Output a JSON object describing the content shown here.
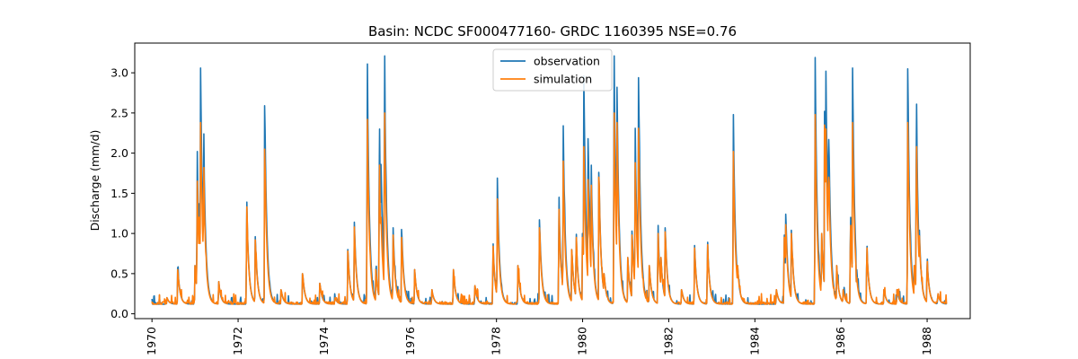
{
  "chart_data": {
    "type": "line",
    "title": "Basin: NCDC SF000477160- GRDC 1160395 NSE=0.76",
    "xlabel": "",
    "ylabel": "Discharge (mm/d)",
    "xlim": [
      1969.6,
      1989.0
    ],
    "ylim": [
      -0.06,
      3.37
    ],
    "x_ticks": [
      1970,
      1972,
      1974,
      1976,
      1978,
      1980,
      1982,
      1984,
      1986,
      1988
    ],
    "x_tick_labels": [
      "1970",
      "1972",
      "1974",
      "1976",
      "1978",
      "1980",
      "1982",
      "1984",
      "1986",
      "1988"
    ],
    "y_ticks": [
      0.0,
      0.5,
      1.0,
      1.5,
      2.0,
      2.5,
      3.0
    ],
    "y_tick_labels": [
      "0.0",
      "0.5",
      "1.0",
      "1.5",
      "2.0",
      "2.5",
      "3.0"
    ],
    "grid": false,
    "legend": "top-center",
    "x_range": [
      1970.0,
      1988.45
    ],
    "baseline": 0.12,
    "series": [
      {
        "name": "observation",
        "color": "#1f77b4",
        "peaks": [
          [
            1970.35,
            0.2
          ],
          [
            1970.6,
            0.57
          ],
          [
            1971.0,
            0.6
          ],
          [
            1971.05,
            2.02
          ],
          [
            1971.1,
            1.37
          ],
          [
            1971.13,
            3.06
          ],
          [
            1971.2,
            2.24
          ],
          [
            1971.55,
            0.4
          ],
          [
            1972.2,
            1.39
          ],
          [
            1972.4,
            0.96
          ],
          [
            1972.62,
            2.59
          ],
          [
            1973.0,
            0.3
          ],
          [
            1973.5,
            0.5
          ],
          [
            1973.9,
            0.38
          ],
          [
            1974.25,
            0.2
          ],
          [
            1974.55,
            0.8
          ],
          [
            1974.7,
            1.14
          ],
          [
            1975.0,
            3.11
          ],
          [
            1975.2,
            0.55
          ],
          [
            1975.28,
            2.3
          ],
          [
            1975.32,
            1.86
          ],
          [
            1975.4,
            3.21
          ],
          [
            1975.6,
            1.07
          ],
          [
            1975.8,
            1.05
          ],
          [
            1976.1,
            0.55
          ],
          [
            1976.5,
            0.3
          ],
          [
            1977.0,
            0.55
          ],
          [
            1977.5,
            0.35
          ],
          [
            1977.92,
            0.87
          ],
          [
            1978.02,
            1.69
          ],
          [
            1978.5,
            0.6
          ],
          [
            1979.0,
            1.17
          ],
          [
            1979.45,
            1.45
          ],
          [
            1979.55,
            2.34
          ],
          [
            1979.75,
            0.8
          ],
          [
            1979.85,
            0.99
          ],
          [
            1980.0,
            1.0
          ],
          [
            1980.03,
            2.96
          ],
          [
            1980.13,
            2.18
          ],
          [
            1980.2,
            1.85
          ],
          [
            1980.38,
            1.76
          ],
          [
            1980.5,
            0.5
          ],
          [
            1980.73,
            3.21
          ],
          [
            1980.8,
            2.82
          ],
          [
            1981.05,
            0.7
          ],
          [
            1981.15,
            1.03
          ],
          [
            1981.22,
            2.31
          ],
          [
            1981.3,
            2.94
          ],
          [
            1981.55,
            0.6
          ],
          [
            1981.75,
            1.1
          ],
          [
            1981.82,
            0.7
          ],
          [
            1981.92,
            1.07
          ],
          [
            1982.3,
            0.3
          ],
          [
            1982.6,
            0.85
          ],
          [
            1982.9,
            0.89
          ],
          [
            1983.5,
            2.48
          ],
          [
            1983.6,
            0.6
          ],
          [
            1984.5,
            0.3
          ],
          [
            1984.68,
            0.98
          ],
          [
            1984.72,
            1.24
          ],
          [
            1984.85,
            1.04
          ],
          [
            1985.4,
            3.19
          ],
          [
            1985.55,
            1.0
          ],
          [
            1985.62,
            2.52
          ],
          [
            1985.65,
            3.02
          ],
          [
            1985.7,
            1.93
          ],
          [
            1985.72,
            2.17
          ],
          [
            1985.9,
            0.6
          ],
          [
            1986.05,
            0.3
          ],
          [
            1986.22,
            1.2
          ],
          [
            1986.27,
            3.06
          ],
          [
            1986.35,
            0.4
          ],
          [
            1986.6,
            0.84
          ],
          [
            1987.0,
            0.3
          ],
          [
            1987.3,
            0.3
          ],
          [
            1987.55,
            3.05
          ],
          [
            1987.7,
            0.6
          ],
          [
            1987.75,
            2.61
          ],
          [
            1987.82,
            1.04
          ],
          [
            1988.0,
            0.68
          ],
          [
            1988.25,
            0.25
          ]
        ]
      },
      {
        "name": "simulation",
        "color": "#ff7f0e",
        "peaks": [
          [
            1970.35,
            0.2
          ],
          [
            1970.6,
            0.55
          ],
          [
            1971.0,
            0.6
          ],
          [
            1971.05,
            1.65
          ],
          [
            1971.1,
            1.2
          ],
          [
            1971.13,
            2.38
          ],
          [
            1971.2,
            1.82
          ],
          [
            1971.55,
            0.4
          ],
          [
            1972.2,
            1.33
          ],
          [
            1972.4,
            0.92
          ],
          [
            1972.62,
            2.05
          ],
          [
            1973.0,
            0.3
          ],
          [
            1973.5,
            0.5
          ],
          [
            1973.9,
            0.38
          ],
          [
            1974.25,
            0.2
          ],
          [
            1974.55,
            0.78
          ],
          [
            1974.7,
            1.08
          ],
          [
            1975.0,
            2.42
          ],
          [
            1975.2,
            0.55
          ],
          [
            1975.28,
            1.85
          ],
          [
            1975.32,
            1.2
          ],
          [
            1975.4,
            2.5
          ],
          [
            1975.6,
            0.98
          ],
          [
            1975.8,
            0.95
          ],
          [
            1976.1,
            0.55
          ],
          [
            1976.5,
            0.3
          ],
          [
            1977.0,
            0.55
          ],
          [
            1977.5,
            0.35
          ],
          [
            1977.92,
            0.84
          ],
          [
            1978.02,
            1.43
          ],
          [
            1978.5,
            0.6
          ],
          [
            1979.0,
            1.07
          ],
          [
            1979.45,
            1.3
          ],
          [
            1979.55,
            1.9
          ],
          [
            1979.75,
            0.8
          ],
          [
            1979.85,
            0.95
          ],
          [
            1980.0,
            0.95
          ],
          [
            1980.03,
            2.08
          ],
          [
            1980.13,
            1.67
          ],
          [
            1980.2,
            1.6
          ],
          [
            1980.38,
            1.7
          ],
          [
            1980.5,
            0.5
          ],
          [
            1980.73,
            2.5
          ],
          [
            1980.8,
            2.38
          ],
          [
            1981.05,
            0.7
          ],
          [
            1981.15,
            0.98
          ],
          [
            1981.22,
            1.88
          ],
          [
            1981.3,
            2.31
          ],
          [
            1981.55,
            0.6
          ],
          [
            1981.75,
            1.0
          ],
          [
            1981.82,
            0.7
          ],
          [
            1981.92,
            1.02
          ],
          [
            1982.3,
            0.3
          ],
          [
            1982.6,
            0.82
          ],
          [
            1982.9,
            0.86
          ],
          [
            1983.5,
            2.02
          ],
          [
            1983.6,
            0.6
          ],
          [
            1984.5,
            0.3
          ],
          [
            1984.68,
            0.95
          ],
          [
            1984.72,
            1.11
          ],
          [
            1984.85,
            1.0
          ],
          [
            1985.4,
            2.48
          ],
          [
            1985.55,
            1.0
          ],
          [
            1985.62,
            2.35
          ],
          [
            1985.65,
            2.3
          ],
          [
            1985.7,
            1.55
          ],
          [
            1985.72,
            1.7
          ],
          [
            1985.9,
            0.6
          ],
          [
            1986.05,
            0.3
          ],
          [
            1986.22,
            1.1
          ],
          [
            1986.27,
            2.38
          ],
          [
            1986.35,
            0.4
          ],
          [
            1986.6,
            0.82
          ],
          [
            1987.0,
            0.3
          ],
          [
            1987.3,
            0.3
          ],
          [
            1987.55,
            2.38
          ],
          [
            1987.7,
            0.6
          ],
          [
            1987.75,
            2.08
          ],
          [
            1987.82,
            0.97
          ],
          [
            1988.0,
            0.65
          ],
          [
            1988.25,
            0.25
          ]
        ]
      }
    ]
  }
}
